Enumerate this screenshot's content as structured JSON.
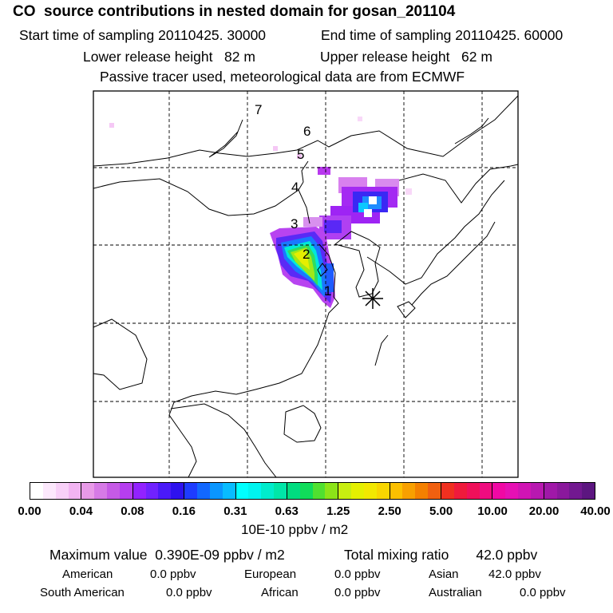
{
  "header": {
    "title": "CO  source contributions in nested domain for gosan_201104",
    "start": "Start time of sampling 20110425. 30000",
    "end": "End time of sampling 20110425. 60000",
    "lower": "Lower release height   82 m",
    "upper": "Upper release height   62 m",
    "tracer": "Passive tracer used, meteorological data are from ECMWF"
  },
  "map": {
    "trajectory_labels": [
      "1",
      "2",
      "3",
      "4",
      "5",
      "6",
      "7"
    ],
    "receptor_marker": "asterisk"
  },
  "colorbar": {
    "tick_labels": [
      "0.00",
      "0.04",
      "0.08",
      "0.16",
      "0.31",
      "0.63",
      "1.25",
      "2.50",
      "5.00",
      "10.00",
      "20.00",
      "40.00"
    ],
    "colors": [
      "#ffffff",
      "#fce8fc",
      "#f8d0f8",
      "#f2b4f2",
      "#e89ae8",
      "#d67ae6",
      "#c65ae6",
      "#b63ef0",
      "#9222ff",
      "#7022ff",
      "#4a1af8",
      "#2e12ee",
      "#1e3cff",
      "#1268ff",
      "#0a96ff",
      "#08bcff",
      "#00ffff",
      "#00f4f0",
      "#00eccc",
      "#00e6a8",
      "#00dc80",
      "#10dc5a",
      "#50e030",
      "#8ce418",
      "#c8ee10",
      "#e4f000",
      "#f2e800",
      "#f8d600",
      "#fcc000",
      "#f8a000",
      "#f48000",
      "#f06010",
      "#f03020",
      "#f01a3c",
      "#f0105a",
      "#f00c80",
      "#f008a4",
      "#e610b4",
      "#d014b4",
      "#b818b0",
      "#a018a8",
      "#8a189c",
      "#721890",
      "#5c1680"
    ],
    "units": "10E-10 ppbv / m2"
  },
  "footer": {
    "max_value": "Maximum value  0.390E-09 ppbv / m2",
    "total": "Total mixing ratio       42.0 ppbv",
    "american_label": "American",
    "american_value": "0.0 ppbv",
    "european_label": "European",
    "european_value": "0.0 ppbv",
    "asian_label": "Asian",
    "asian_value": "42.0 ppbv",
    "south_american_label": "South American",
    "south_american_value": "0.0 ppbv",
    "african_label": "African",
    "african_value": "0.0 ppbv",
    "australian_label": "Australian",
    "australian_value": "0.0 ppbv"
  }
}
